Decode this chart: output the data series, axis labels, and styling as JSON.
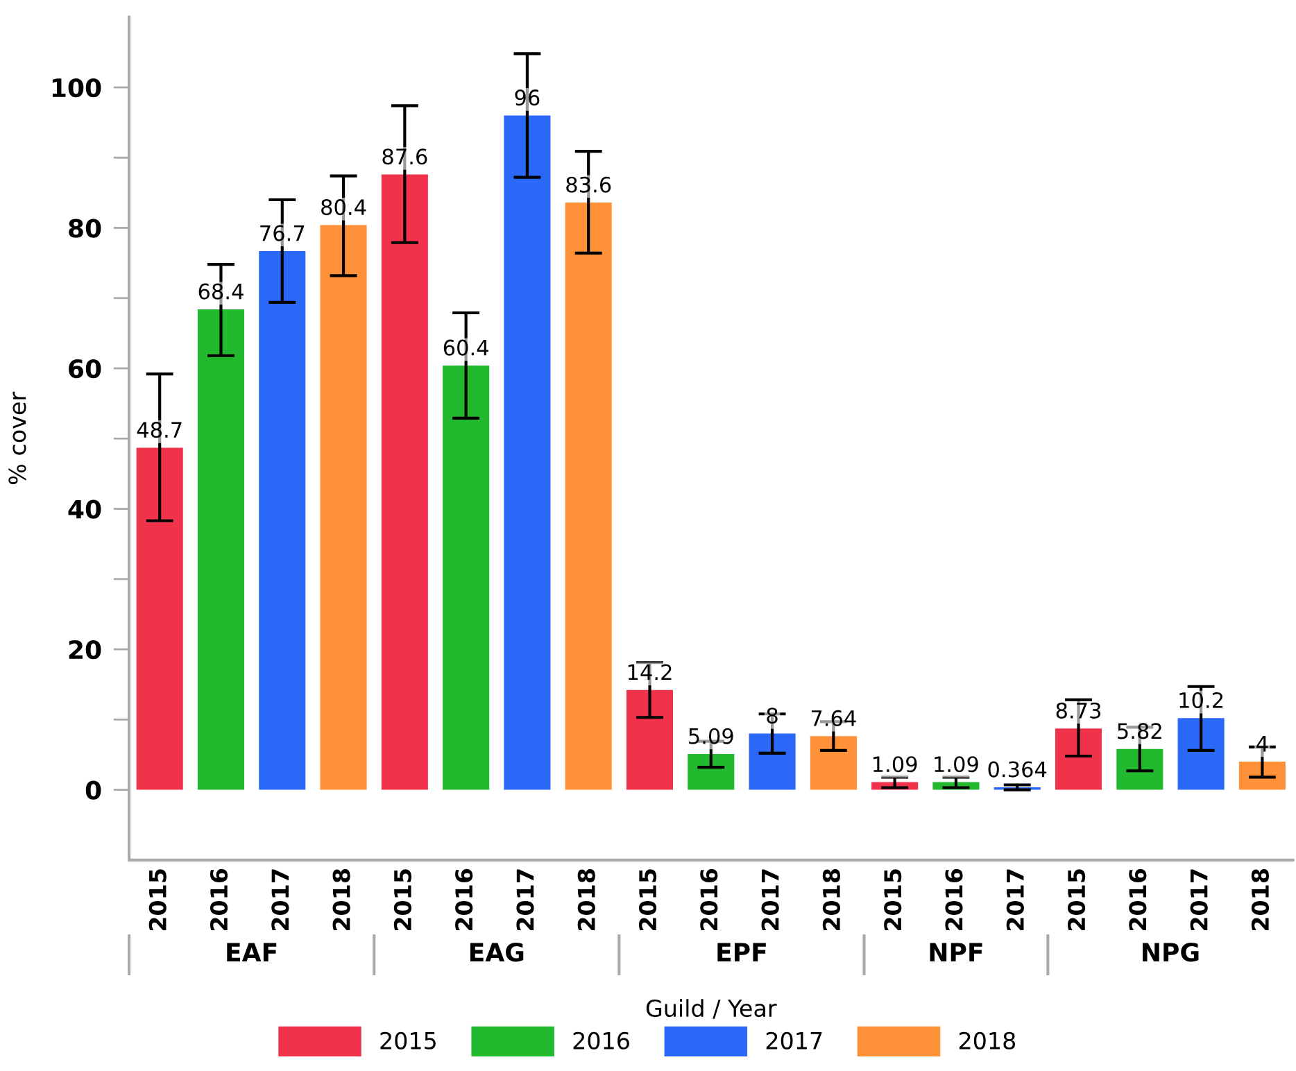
{
  "chart_data": {
    "type": "bar",
    "xlabel": "Guild / Year",
    "ylabel": "% cover",
    "categories": [
      "2015",
      "2016",
      "2017",
      "2018",
      "2015",
      "2016",
      "2017",
      "2018",
      "2015",
      "2016",
      "2017",
      "2018",
      "2015",
      "2016",
      "2017",
      "2015",
      "2016",
      "2017",
      "2018"
    ],
    "annotations": [
      "EAF",
      "EAG",
      "EPF",
      "NPF",
      "NPG"
    ],
    "series": [
      {
        "name": "2015",
        "color": "#f0334a",
        "values": [
          48.7,
          null,
          null,
          null,
          87.6,
          null,
          null,
          null,
          14.2,
          null,
          null,
          null,
          1.09,
          null,
          null,
          8.73,
          null,
          null,
          null
        ],
        "errors": [
          [
            38.3,
            59.2
          ],
          null,
          null,
          null,
          [
            77.9,
            97.4
          ],
          null,
          null,
          null,
          [
            10.3,
            18.1
          ],
          null,
          null,
          null,
          [
            0.3,
            1.8
          ],
          null,
          null,
          [
            4.8,
            12.8
          ],
          null,
          null,
          null
        ]
      },
      {
        "name": "2016",
        "color": "#22b92e",
        "values": [
          null,
          68.4,
          null,
          null,
          null,
          60.4,
          null,
          null,
          null,
          5.09,
          null,
          null,
          null,
          1.09,
          null,
          null,
          5.82,
          null,
          null
        ],
        "errors": [
          null,
          [
            61.8,
            74.8
          ],
          null,
          null,
          null,
          [
            52.9,
            67.9
          ],
          null,
          null,
          null,
          [
            3.2,
            6.9
          ],
          null,
          null,
          null,
          [
            0.3,
            1.8
          ],
          null,
          null,
          [
            2.7,
            8.9
          ],
          null,
          null
        ]
      },
      {
        "name": "2017",
        "color": "#2a68f8",
        "values": [
          null,
          null,
          76.7,
          null,
          null,
          null,
          96,
          null,
          null,
          null,
          8,
          null,
          null,
          null,
          0.364,
          null,
          null,
          10.2,
          null
        ],
        "errors": [
          null,
          null,
          [
            69.4,
            84.0
          ],
          null,
          null,
          null,
          [
            87.2,
            104.8
          ],
          null,
          null,
          null,
          [
            5.2,
            10.8
          ],
          null,
          null,
          null,
          [
            0.0,
            0.7
          ],
          null,
          null,
          [
            5.6,
            14.7
          ],
          null
        ]
      },
      {
        "name": "2018",
        "color": "#ff9238",
        "values": [
          null,
          null,
          null,
          80.4,
          null,
          null,
          null,
          83.6,
          null,
          null,
          null,
          7.64,
          null,
          null,
          null,
          null,
          null,
          null,
          4
        ],
        "errors": [
          null,
          null,
          null,
          [
            73.2,
            87.4
          ],
          null,
          null,
          null,
          [
            76.4,
            90.9
          ],
          null,
          null,
          null,
          [
            5.6,
            9.7
          ],
          null,
          null,
          null,
          null,
          null,
          null,
          [
            1.8,
            6.1
          ]
        ]
      }
    ],
    "ylim": [
      -10,
      110
    ],
    "yticks": [
      0,
      {
        "value": 10,
        "label": null
      },
      20,
      {
        "value": 30,
        "label": null
      },
      40,
      {
        "value": 50,
        "label": null
      },
      60,
      {
        "value": 70,
        "label": null
      },
      80,
      {
        "value": 90,
        "label": null
      },
      100
    ],
    "data_labels": true,
    "grid": false,
    "legend": "bottom"
  }
}
